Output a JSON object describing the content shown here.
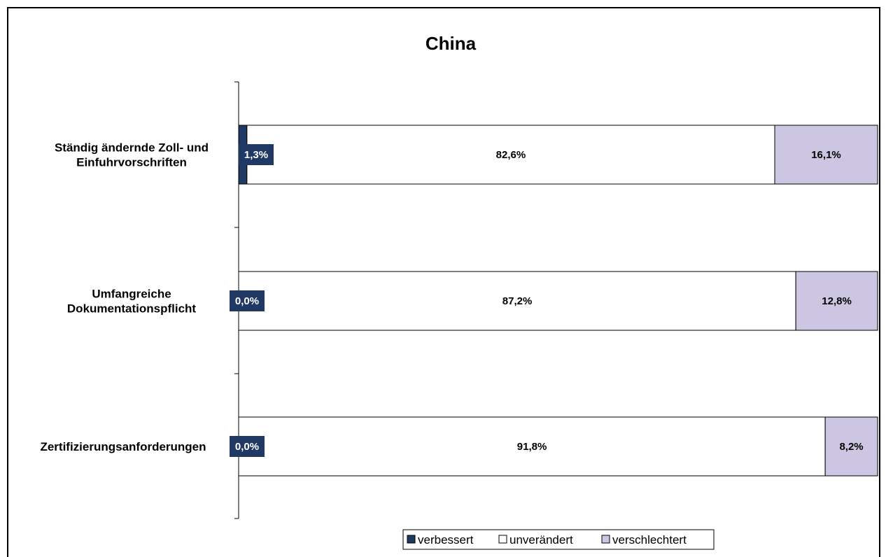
{
  "chart_data": {
    "type": "bar",
    "orientation": "horizontal",
    "stacked": true,
    "title": "China",
    "categories": [
      "Ständig ändernde Zoll- und Einfuhrvorschriften",
      "Umfangreiche Dokumentationspflicht",
      "Zertifizierungsanforderungen"
    ],
    "category_lines": [
      [
        "Ständig ändernde Zoll- und",
        "Einfuhrvorschriften"
      ],
      [
        "Umfangreiche",
        "Dokumentationspflicht"
      ],
      [
        "Zertifizierungsanforderungen"
      ]
    ],
    "series": [
      {
        "name": "verbessert",
        "values": [
          1.3,
          0.0,
          0.0
        ],
        "labels": [
          "1,3%",
          "0,0%",
          "0,0%"
        ]
      },
      {
        "name": "unverändert",
        "values": [
          82.6,
          87.2,
          91.8
        ],
        "labels": [
          "82,6%",
          "87,2%",
          "91,8%"
        ]
      },
      {
        "name": "verschlechtert",
        "values": [
          16.1,
          12.8,
          8.2
        ],
        "labels": [
          "16,1%",
          "12,8%",
          "8,2%"
        ]
      }
    ],
    "xlim": [
      0,
      100
    ],
    "grid": false,
    "legend_position": "bottom",
    "colors": {
      "verbessert": "#1f3864",
      "unverändert": "#ffffff",
      "verschlechtert": "#ccc6e3"
    }
  }
}
